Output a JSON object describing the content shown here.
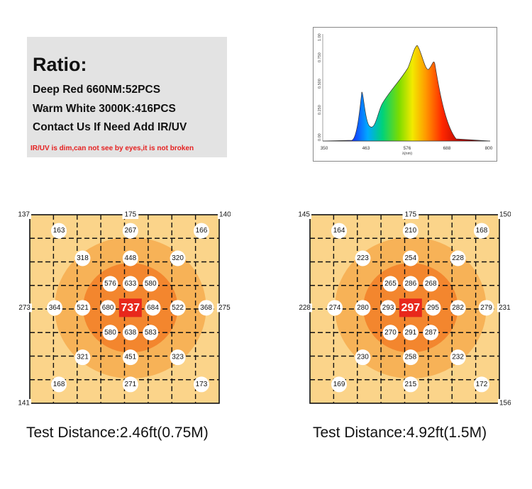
{
  "ratio": {
    "title": "Ratio:",
    "lines": [
      "Deep Red  660NM:52PCS",
      "Warm White 3000K:416PCS",
      "Contact Us If Need Add IR/UV"
    ],
    "note": "IR/UV is dim,can not see by eyes,it is not broken"
  },
  "spectrum": {
    "x_ticks": [
      "350",
      "463",
      "576",
      "688",
      "800"
    ],
    "y_ticks": [
      "0.00",
      "0.250",
      "0.500",
      "0.750",
      "1.00"
    ],
    "xlabel": "λ(nm)"
  },
  "colors": {
    "light_cell": "#fbd48a",
    "mid_cell": "#f7b257",
    "dark_cell": "#f3862e",
    "center_badge": "#e8281c"
  },
  "maps": [
    {
      "caption": "Test Distance:2.46ft(0.75M)",
      "center": "737",
      "corners": {
        "tl": "137",
        "tr": "140",
        "bl": "141",
        "br": ""
      },
      "edges": {
        "top": "175",
        "left": "273",
        "right": "275"
      },
      "values": [
        {
          "v": "163",
          "c": 1.23,
          "r": 0.68
        },
        {
          "v": "267",
          "c": 4.25,
          "r": 0.68
        },
        {
          "v": "166",
          "c": 7.25,
          "r": 0.68
        },
        {
          "v": "318",
          "c": 2.23,
          "r": 1.85
        },
        {
          "v": "448",
          "c": 4.25,
          "r": 1.85
        },
        {
          "v": "320",
          "c": 6.25,
          "r": 1.85
        },
        {
          "v": "576",
          "c": 3.4,
          "r": 2.93
        },
        {
          "v": "633",
          "c": 4.25,
          "r": 2.93
        },
        {
          "v": "580",
          "c": 5.1,
          "r": 2.93
        },
        {
          "v": "364",
          "c": 1.05,
          "r": 3.95
        },
        {
          "v": "521",
          "c": 2.23,
          "r": 3.95
        },
        {
          "v": "680",
          "c": 3.3,
          "r": 3.95
        },
        {
          "v": "684",
          "c": 5.2,
          "r": 3.95
        },
        {
          "v": "522",
          "c": 6.25,
          "r": 3.95
        },
        {
          "v": "368",
          "c": 7.45,
          "r": 3.95
        },
        {
          "v": "580",
          "c": 3.4,
          "r": 5.0
        },
        {
          "v": "638",
          "c": 4.25,
          "r": 5.0
        },
        {
          "v": "583",
          "c": 5.1,
          "r": 5.0
        },
        {
          "v": "321",
          "c": 2.23,
          "r": 6.05
        },
        {
          "v": "451",
          "c": 4.25,
          "r": 6.05
        },
        {
          "v": "323",
          "c": 6.25,
          "r": 6.05
        },
        {
          "v": "168",
          "c": 1.23,
          "r": 7.2
        },
        {
          "v": "271",
          "c": 4.25,
          "r": 7.2
        },
        {
          "v": "173",
          "c": 7.25,
          "r": 7.2
        }
      ]
    },
    {
      "caption": "Test Distance:4.92ft(1.5M)",
      "center": "297",
      "corners": {
        "tl": "145",
        "tr": "150",
        "bl": "",
        "br": "156"
      },
      "edges": {
        "top": "175",
        "left": "228",
        "right": "231"
      },
      "values": [
        {
          "v": "164",
          "c": 1.23,
          "r": 0.68
        },
        {
          "v": "210",
          "c": 4.25,
          "r": 0.68
        },
        {
          "v": "168",
          "c": 7.25,
          "r": 0.68
        },
        {
          "v": "223",
          "c": 2.23,
          "r": 1.85
        },
        {
          "v": "254",
          "c": 4.25,
          "r": 1.85
        },
        {
          "v": "228",
          "c": 6.25,
          "r": 1.85
        },
        {
          "v": "265",
          "c": 3.4,
          "r": 2.93
        },
        {
          "v": "286",
          "c": 4.25,
          "r": 2.93
        },
        {
          "v": "268",
          "c": 5.1,
          "r": 2.93
        },
        {
          "v": "274",
          "c": 1.05,
          "r": 3.95
        },
        {
          "v": "280",
          "c": 2.23,
          "r": 3.95
        },
        {
          "v": "293",
          "c": 3.3,
          "r": 3.95
        },
        {
          "v": "295",
          "c": 5.2,
          "r": 3.95
        },
        {
          "v": "282",
          "c": 6.25,
          "r": 3.95
        },
        {
          "v": "279",
          "c": 7.45,
          "r": 3.95
        },
        {
          "v": "270",
          "c": 3.4,
          "r": 5.0
        },
        {
          "v": "291",
          "c": 4.25,
          "r": 5.0
        },
        {
          "v": "287",
          "c": 5.1,
          "r": 5.0
        },
        {
          "v": "230",
          "c": 2.23,
          "r": 6.05
        },
        {
          "v": "258",
          "c": 4.25,
          "r": 6.05
        },
        {
          "v": "232",
          "c": 6.25,
          "r": 6.05
        },
        {
          "v": "169",
          "c": 1.23,
          "r": 7.2
        },
        {
          "v": "215",
          "c": 4.25,
          "r": 7.2
        },
        {
          "v": "172",
          "c": 7.25,
          "r": 7.2
        }
      ]
    }
  ]
}
